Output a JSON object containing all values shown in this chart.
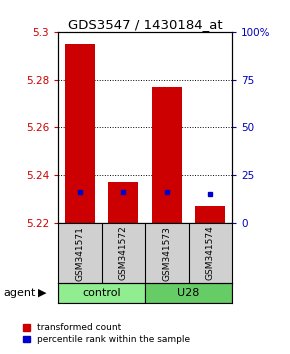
{
  "title": "GDS3547 / 1430184_at",
  "samples": [
    "GSM341571",
    "GSM341572",
    "GSM341573",
    "GSM341574"
  ],
  "red_values": [
    5.295,
    5.237,
    5.277,
    5.227
  ],
  "blue_values": [
    5.233,
    5.233,
    5.233,
    5.232
  ],
  "bar_bottom": 5.22,
  "ylim_left": [
    5.22,
    5.3
  ],
  "yticks_left": [
    5.22,
    5.24,
    5.26,
    5.28,
    5.3
  ],
  "yticks_right": [
    0,
    25,
    50,
    75,
    100
  ],
  "ytick_labels_right": [
    "0",
    "25",
    "50",
    "75",
    "100%"
  ],
  "grid_lines": [
    5.24,
    5.26,
    5.28
  ],
  "control_color": "#90EE90",
  "u28_color": "#66CC66",
  "legend_red": "transformed count",
  "legend_blue": "percentile rank within the sample",
  "bar_width": 0.7,
  "red_color": "#CC0000",
  "blue_color": "#0000CC",
  "left_tick_color": "#CC0000",
  "right_tick_color": "#0000BB"
}
